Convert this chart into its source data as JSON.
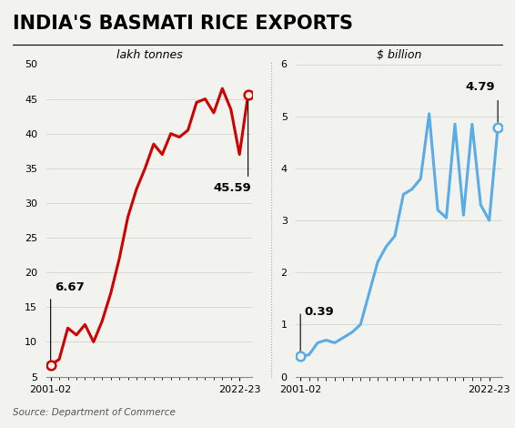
{
  "title": "INDIA'S BASMATI RICE EXPORTS",
  "source": "Source: Department of Commerce",
  "left_label": "lakh tonnes",
  "right_label": "$ billion",
  "left_ylim": [
    5,
    50
  ],
  "left_yticks": [
    5,
    10,
    15,
    20,
    25,
    30,
    35,
    40,
    45,
    50
  ],
  "right_ylim": [
    0,
    6
  ],
  "right_yticks": [
    0,
    1,
    2,
    3,
    4,
    5,
    6
  ],
  "left_annotation_start": "6.67",
  "left_annotation_end": "45.59",
  "right_annotation_start": "0.39",
  "right_annotation_end": "4.79",
  "left_color": "#cc0000",
  "right_color": "#5aace4",
  "bg_color": "#f2f2ee",
  "left_y": [
    6.67,
    7.5,
    12.0,
    11.0,
    12.5,
    10.0,
    13.0,
    17.0,
    22.0,
    28.0,
    32.0,
    35.0,
    38.5,
    37.0,
    40.0,
    39.5,
    40.5,
    44.5,
    45.0,
    43.0,
    46.5,
    43.5,
    37.0,
    45.59
  ],
  "right_y": [
    0.39,
    0.42,
    0.65,
    0.7,
    0.65,
    0.75,
    0.85,
    1.0,
    1.6,
    2.2,
    2.5,
    2.7,
    3.5,
    3.6,
    3.8,
    5.05,
    3.2,
    3.05,
    4.85,
    3.1,
    4.85,
    3.3,
    3.0,
    4.79
  ]
}
